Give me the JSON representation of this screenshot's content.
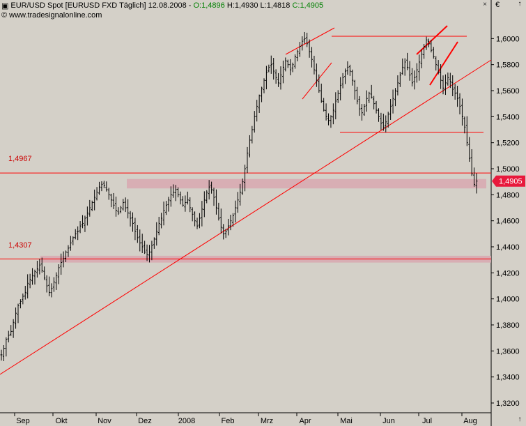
{
  "header": {
    "instrument": "EUR/USD Spot [EURUSD FXD  Täglich]",
    "date": "12.08.2008",
    "open_text": "O:1,4896",
    "high_text": "H:1,4930",
    "low_text": "L:1,4818",
    "close_text": "C:1,4905",
    "copyright": "© www.tradesignalonline.com",
    "currency_symbol": "€",
    "close_symbol": "×",
    "scroll_up_symbol": "↑",
    "scroll_down_symbol": "↑"
  },
  "levels": {
    "upper_label": "1,4967",
    "lower_label": "1,4307",
    "last_price_label": "1,4905"
  },
  "colors": {
    "background": "#d4d0c8",
    "bars": "#000000",
    "trendline": "#ff0000",
    "zone": "#d8a8b0",
    "last_price_badge": "#e8193c",
    "open_close_text": "#008000"
  },
  "chart_data": {
    "type": "ohlc",
    "x_axis_labels": [
      "Sep",
      "Okt",
      "Nov",
      "Dez",
      "2008",
      "Feb",
      "Mrz",
      "Apr",
      "Mai",
      "Jun",
      "Jul",
      "Aug"
    ],
    "y_tick_labels": [
      "1,3200",
      "1,3400",
      "1,3600",
      "1,3800",
      "1,4000",
      "1,4200",
      "1,4400",
      "1,4600",
      "1,4800",
      "1,5000",
      "1,5200",
      "1,5400",
      "1,5600",
      "1,5800",
      "1,6000"
    ],
    "ylim": [
      1.312,
      1.618
    ],
    "horizontal_levels": [
      1.4967,
      1.4307,
      1.528,
      1.6018
    ],
    "zones": [
      [
        1.4865,
        1.4905
      ],
      [
        1.4295,
        1.4315
      ]
    ],
    "last_price": 1.4905,
    "series_close": [
      1.357,
      1.362,
      1.369,
      1.372,
      1.375,
      1.382,
      1.389,
      1.395,
      1.398,
      1.402,
      1.405,
      1.412,
      1.415,
      1.418,
      1.421,
      1.423,
      1.426,
      1.422,
      1.416,
      1.41,
      1.405,
      1.408,
      1.413,
      1.418,
      1.424,
      1.428,
      1.431,
      1.436,
      1.439,
      1.443,
      1.447,
      1.45,
      1.452,
      1.456,
      1.458,
      1.462,
      1.466,
      1.47,
      1.474,
      1.478,
      1.482,
      1.486,
      1.488,
      1.487,
      1.484,
      1.48,
      1.476,
      1.472,
      1.468,
      1.466,
      1.47,
      1.474,
      1.47,
      1.466,
      1.462,
      1.458,
      1.452,
      1.447,
      1.443,
      1.44,
      1.436,
      1.434,
      1.436,
      1.441,
      1.446,
      1.452,
      1.458,
      1.462,
      1.468,
      1.472,
      1.476,
      1.48,
      1.482,
      1.484,
      1.48,
      1.476,
      1.472,
      1.474,
      1.476,
      1.47,
      1.465,
      1.46,
      1.456,
      1.462,
      1.469,
      1.476,
      1.482,
      1.486,
      1.484,
      1.478,
      1.47,
      1.462,
      1.455,
      1.45,
      1.452,
      1.456,
      1.46,
      1.464,
      1.47,
      1.476,
      1.482,
      1.49,
      1.5,
      1.512,
      1.522,
      1.53,
      1.54,
      1.548,
      1.556,
      1.562,
      1.568,
      1.574,
      1.578,
      1.58,
      1.575,
      1.57,
      1.566,
      1.572,
      1.578,
      1.583,
      1.58,
      1.576,
      1.58,
      1.586,
      1.59,
      1.594,
      1.598,
      1.6,
      1.596,
      1.59,
      1.584,
      1.576,
      1.568,
      1.56,
      1.552,
      1.545,
      1.54,
      1.537,
      1.54,
      1.545,
      1.552,
      1.558,
      1.564,
      1.57,
      1.575,
      1.578,
      1.575,
      1.568,
      1.56,
      1.552,
      1.546,
      1.543,
      1.548,
      1.554,
      1.558,
      1.555,
      1.55,
      1.545,
      1.54,
      1.535,
      1.532,
      1.536,
      1.542,
      1.548,
      1.554,
      1.56,
      1.566,
      1.572,
      1.578,
      1.582,
      1.578,
      1.572,
      1.566,
      1.57,
      1.576,
      1.582,
      1.588,
      1.594,
      1.599,
      1.596,
      1.591,
      1.586,
      1.58,
      1.574,
      1.568,
      1.562,
      1.566,
      1.57,
      1.567,
      1.561,
      1.558,
      1.554,
      1.548,
      1.54,
      1.532,
      1.52,
      1.508,
      1.496,
      1.488,
      1.4905
    ]
  }
}
